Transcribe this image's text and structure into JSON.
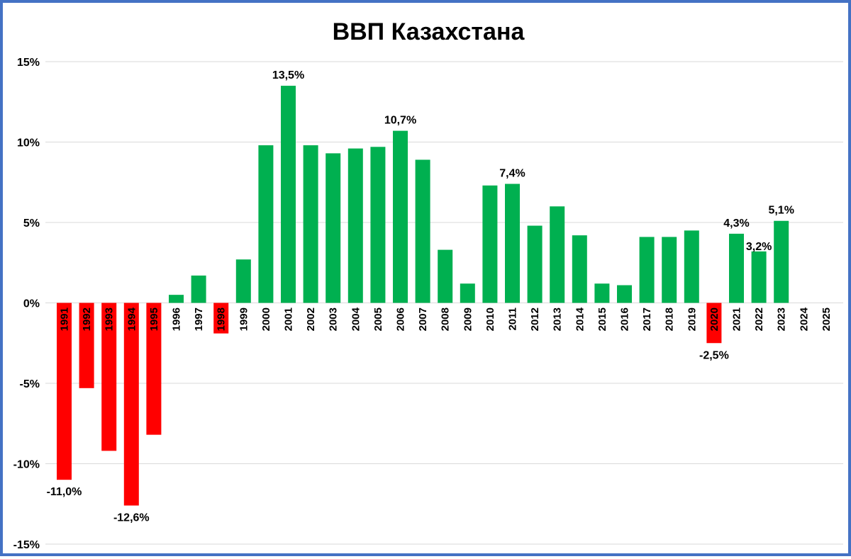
{
  "chart_data": {
    "type": "bar",
    "title": "ВВП Казахстана",
    "xlabel": "",
    "ylabel": "",
    "ylim": [
      -15,
      15
    ],
    "yticks": [
      15,
      10,
      5,
      0,
      -5,
      -10,
      -15
    ],
    "ytick_labels": [
      "15%",
      "10%",
      "5%",
      "0%",
      "-5%",
      "-10%",
      "-15%"
    ],
    "grid": true,
    "legend": "none",
    "colors": {
      "positive": "#00b050",
      "negative": "#ff0000"
    },
    "categories": [
      "1991",
      "1992",
      "1993",
      "1994",
      "1995",
      "1996",
      "1997",
      "1998",
      "1999",
      "2000",
      "2001",
      "2002",
      "2003",
      "2004",
      "2005",
      "2006",
      "2007",
      "2008",
      "2009",
      "2010",
      "2011",
      "2012",
      "2013",
      "2014",
      "2015",
      "2016",
      "2017",
      "2018",
      "2019",
      "2020",
      "2021",
      "2022",
      "2023",
      "2024",
      "2025"
    ],
    "values": [
      -11.0,
      -5.3,
      -9.2,
      -12.6,
      -8.2,
      0.5,
      1.7,
      -1.9,
      2.7,
      9.8,
      13.5,
      9.8,
      9.3,
      9.6,
      9.7,
      10.7,
      8.9,
      3.3,
      1.2,
      7.3,
      7.4,
      4.8,
      6.0,
      4.2,
      1.2,
      1.1,
      4.1,
      4.1,
      4.5,
      -2.5,
      4.3,
      3.2,
      5.1,
      null,
      null
    ],
    "data_labels": [
      {
        "category": "1991",
        "text": "-11,0%"
      },
      {
        "category": "1994",
        "text": "-12,6%"
      },
      {
        "category": "2001",
        "text": "13,5%"
      },
      {
        "category": "2006",
        "text": "10,7%"
      },
      {
        "category": "2011",
        "text": "7,4%"
      },
      {
        "category": "2020",
        "text": "-2,5%"
      },
      {
        "category": "2021",
        "text": "4,3%"
      },
      {
        "category": "2022",
        "text": "3,2%"
      },
      {
        "category": "2023",
        "text": "5,1%"
      }
    ]
  }
}
